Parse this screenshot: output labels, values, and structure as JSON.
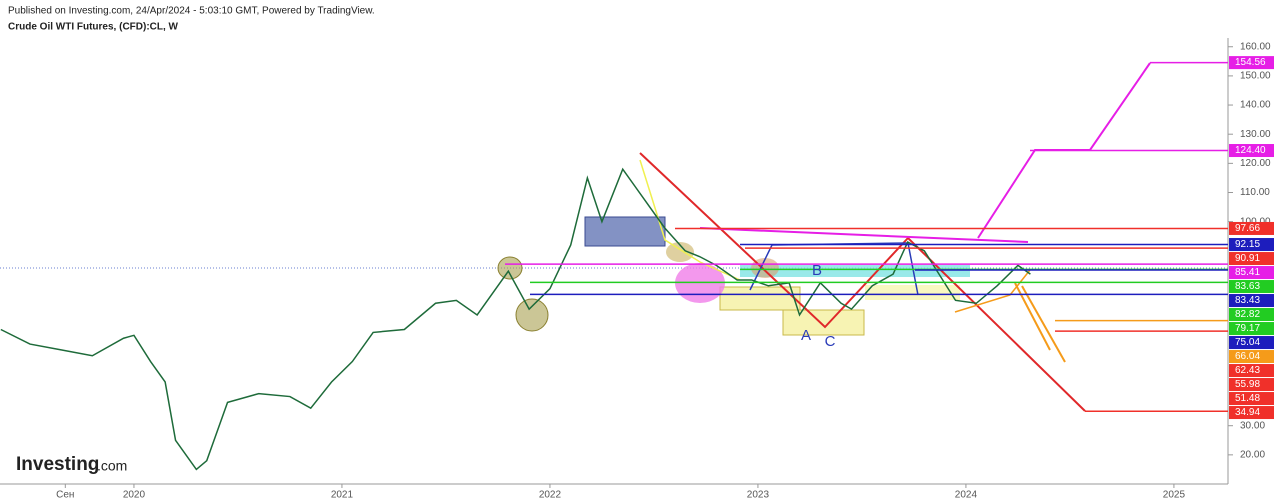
{
  "header": {
    "published": "Published on Investing.com, 24/Apr/2024 - 5:03:10 GMT, Powered by TradingView.",
    "logo": "Investing",
    "logo_suffix": ".com"
  },
  "chart_data": {
    "type": "line",
    "title": "Crude Oil WTI Futures, (CFD):CL, W",
    "x": [
      2019.36,
      2019.5,
      2019.65,
      2019.8,
      2019.95,
      2020.0,
      2020.08,
      2020.15,
      2020.2,
      2020.3,
      2020.35,
      2020.45,
      2020.6,
      2020.75,
      2020.85,
      2020.95,
      2021.05,
      2021.15,
      2021.3,
      2021.45,
      2021.55,
      2021.65,
      2021.8,
      2021.9,
      2022.0,
      2022.1,
      2022.18,
      2022.25,
      2022.35,
      2022.45,
      2022.55,
      2022.65,
      2022.72,
      2022.8,
      2022.9,
      2022.97,
      2023.05,
      2023.15,
      2023.2,
      2023.3,
      2023.4,
      2023.45,
      2023.55,
      2023.65,
      2023.72,
      2023.8,
      2023.95,
      2024.05,
      2024.15,
      2024.25,
      2024.31
    ],
    "series": [
      {
        "name": "CL",
        "color": "#1e6b3a",
        "values": [
          63,
          58,
          56,
          54,
          60,
          61,
          52,
          45,
          25,
          15,
          18,
          38,
          41,
          40,
          36,
          45,
          52,
          62,
          63,
          72,
          73,
          68,
          83,
          70,
          77,
          92,
          115,
          100,
          118,
          108,
          98,
          90,
          88,
          85,
          80,
          80,
          78,
          79,
          68,
          79,
          72,
          70,
          78,
          82,
          93,
          90,
          73,
          72,
          78,
          85,
          82
        ]
      }
    ],
    "xlim": [
      2019.356,
      2025.26
    ],
    "xticks": [
      {
        "value": 2019.67,
        "label": "Сен"
      },
      2020,
      2021,
      2022,
      2023,
      2024,
      2025
    ],
    "ylim": [
      10,
      163
    ],
    "yticks": [
      {
        "value": 20,
        "label": "20.00"
      },
      {
        "value": 30,
        "label": "30.00"
      },
      {
        "value": 100,
        "label": "100.00"
      },
      {
        "value": 110,
        "label": "110.00"
      },
      {
        "value": 120,
        "label": "120.00"
      },
      {
        "value": 130,
        "label": "130.00"
      },
      {
        "value": 140,
        "label": "140.00"
      },
      {
        "value": 150,
        "label": "150.00"
      },
      {
        "value": 160,
        "label": "160.00"
      }
    ],
    "levels": [
      154.56,
      124.4,
      97.66,
      92.15,
      90.91,
      85.41,
      83.63,
      83.43,
      82.82,
      79.17,
      75.04,
      66.04,
      62.43,
      55.98,
      51.48,
      34.94
    ],
    "level_labels": [
      "154.56",
      "124.40",
      "97.66",
      "92.15",
      "90.91",
      "85.41",
      "83.63",
      "83.43",
      "82.82",
      "79.17",
      "75.04",
      "66.04",
      "62.43",
      "55.98",
      "51.48",
      "34.94"
    ],
    "level_colors": [
      "#e61ee6",
      "#e61ee6",
      "#f0302a",
      "#1d1dbd",
      "#f0302a",
      "#e61ee6",
      "#22cc22",
      "#1d1dbd",
      "#22cc22",
      "#22cc22",
      "#1d1dbd",
      "#f59b1a",
      "#f0302a",
      "#f0302a",
      "#f0302a",
      "#f0302a"
    ],
    "annotations": [
      "A",
      "B",
      "C"
    ]
  }
}
